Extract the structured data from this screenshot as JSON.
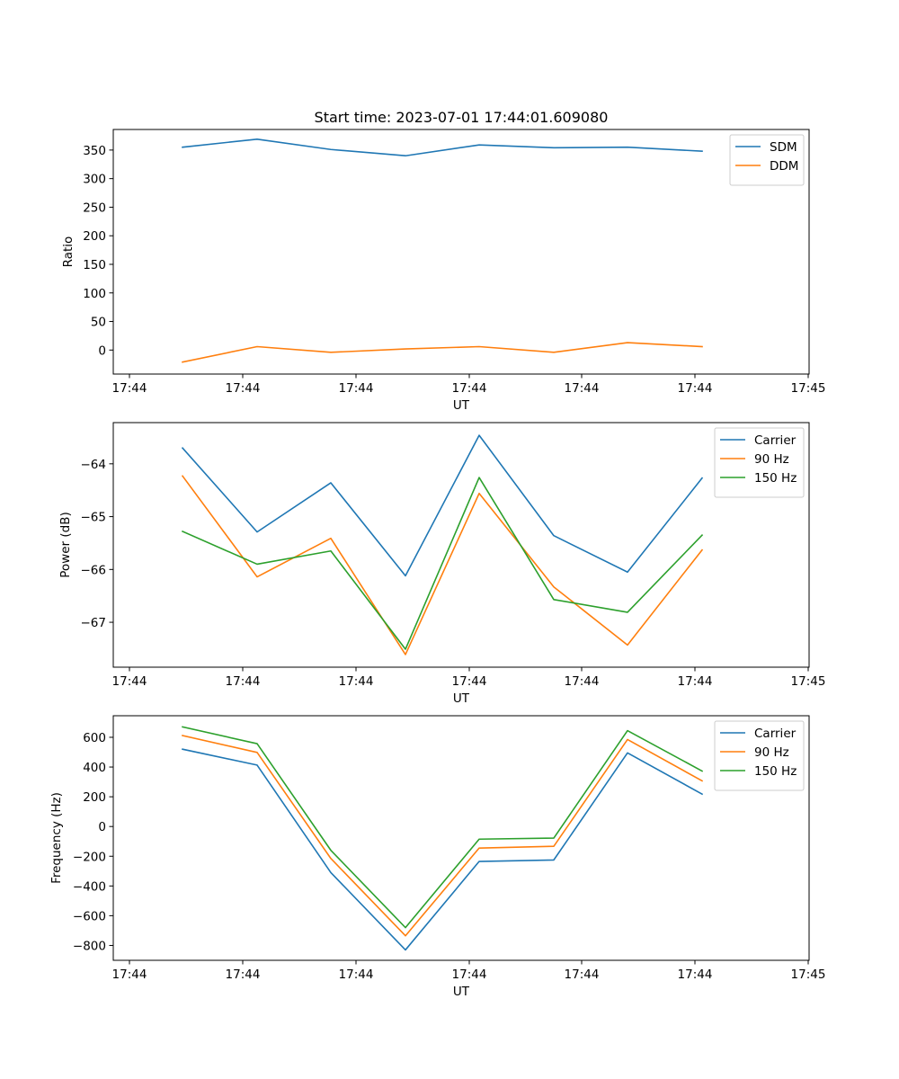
{
  "chart_data": [
    {
      "type": "line",
      "title": "Start time: 2023-07-01 17:44:01.609080",
      "xlabel": "UT",
      "ylabel": "Ratio",
      "x_tick_labels": [
        "17:44",
        "17:44",
        "17:44",
        "17:44",
        "17:44",
        "17:44",
        "17:45"
      ],
      "y_ticks": [
        0,
        50,
        100,
        150,
        200,
        250,
        300,
        350
      ],
      "ylim": [
        -42,
        386
      ],
      "legend": "top-right",
      "series": [
        {
          "name": "SDM",
          "color": "#1f77b4",
          "values": [
            355,
            369,
            351,
            340,
            359,
            354,
            355,
            348
          ]
        },
        {
          "name": "DDM",
          "color": "#ff7f0e",
          "values": [
            -21,
            6,
            -4,
            2,
            6,
            -4,
            13,
            6
          ]
        }
      ]
    },
    {
      "type": "line",
      "title": "",
      "xlabel": "UT",
      "ylabel": "Power (dB)",
      "x_tick_labels": [
        "17:44",
        "17:44",
        "17:44",
        "17:44",
        "17:44",
        "17:44",
        "17:45"
      ],
      "y_ticks": [
        -64,
        -65,
        -66,
        -67
      ],
      "ylim": [
        -67.85,
        -63.22
      ],
      "legend": "top-right",
      "series": [
        {
          "name": "Carrier",
          "color": "#1f77b4",
          "values": [
            -63.7,
            -65.29,
            -64.36,
            -66.12,
            -63.46,
            -65.36,
            -66.05,
            -64.27
          ]
        },
        {
          "name": "90 Hz",
          "color": "#ff7f0e",
          "values": [
            -64.23,
            -66.14,
            -65.41,
            -67.61,
            -64.56,
            -66.33,
            -67.43,
            -65.63
          ]
        },
        {
          "name": "150 Hz",
          "color": "#2ca02c",
          "values": [
            -65.28,
            -65.9,
            -65.65,
            -67.51,
            -64.26,
            -66.57,
            -66.81,
            -65.35
          ]
        }
      ]
    },
    {
      "type": "line",
      "title": "",
      "xlabel": "UT",
      "ylabel": "Frequency (Hz)",
      "x_tick_labels": [
        "17:44",
        "17:44",
        "17:44",
        "17:44",
        "17:44",
        "17:44",
        "17:45"
      ],
      "y_ticks": [
        -800,
        -600,
        -400,
        -200,
        0,
        200,
        400,
        600
      ],
      "ylim": [
        -900,
        745
      ],
      "legend": "top-right",
      "series": [
        {
          "name": "Carrier",
          "color": "#1f77b4",
          "values": [
            520,
            413,
            -310,
            -830,
            -235,
            -225,
            495,
            218
          ]
        },
        {
          "name": "90 Hz",
          "color": "#ff7f0e",
          "values": [
            612,
            498,
            -215,
            -735,
            -145,
            -133,
            585,
            307
          ]
        },
        {
          "name": "150 Hz",
          "color": "#2ca02c",
          "values": [
            670,
            557,
            -160,
            -680,
            -85,
            -78,
            645,
            373
          ]
        }
      ]
    }
  ]
}
